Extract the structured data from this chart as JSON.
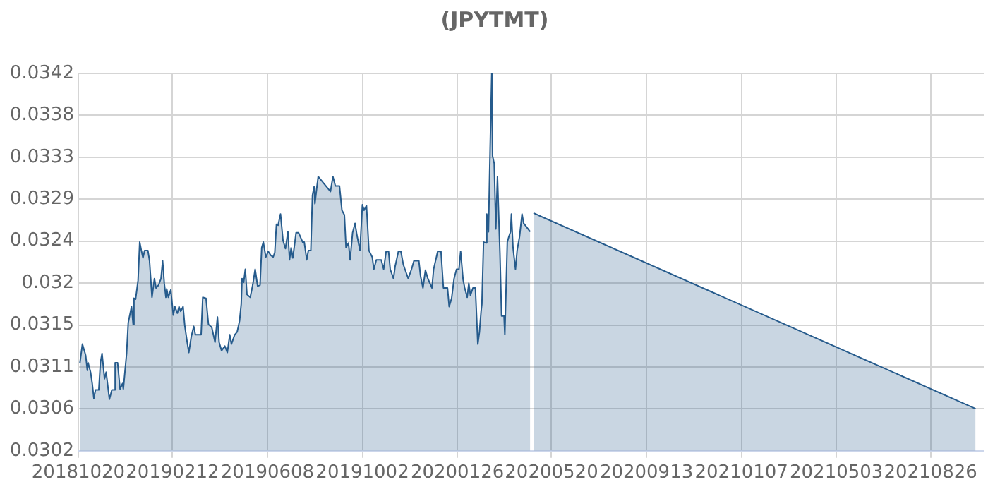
{
  "chart_data": {
    "type": "area",
    "title": "(JPYTMT)",
    "x": [
      "2018-10-22",
      "2018-10-25",
      "2018-10-29",
      "2018-10-31",
      "2018-11-01",
      "2018-11-04",
      "2018-11-06",
      "2018-11-08",
      "2018-11-10",
      "2018-11-14",
      "2018-11-16",
      "2018-11-18",
      "2018-11-21",
      "2018-11-23",
      "2018-11-27",
      "2018-11-30",
      "2018-12-03",
      "2018-12-04",
      "2018-12-07",
      "2018-12-10",
      "2018-12-13",
      "2018-12-14",
      "2018-12-18",
      "2018-12-20",
      "2018-12-24",
      "2018-12-26",
      "2018-12-27",
      "2018-12-29",
      "2019-01-01",
      "2019-01-03",
      "2019-01-05",
      "2019-01-07",
      "2019-01-09",
      "2019-01-13",
      "2019-01-15",
      "2019-01-18",
      "2019-01-21",
      "2019-01-23",
      "2019-01-26",
      "2019-01-29",
      "2019-01-31",
      "2019-02-02",
      "2019-02-04",
      "2019-02-05",
      "2019-02-07",
      "2019-02-10",
      "2019-02-13",
      "2019-02-15",
      "2019-02-18",
      "2019-02-20",
      "2019-02-22",
      "2019-02-25",
      "2019-02-27",
      "2019-03-02",
      "2019-03-04",
      "2019-03-07",
      "2019-03-10",
      "2019-03-12",
      "2019-03-19",
      "2019-03-21",
      "2019-03-25",
      "2019-03-28",
      "2019-04-01",
      "2019-04-05",
      "2019-04-08",
      "2019-04-10",
      "2019-04-13",
      "2019-04-17",
      "2019-04-20",
      "2019-04-23",
      "2019-04-25",
      "2019-04-29",
      "2019-05-02",
      "2019-05-05",
      "2019-05-07",
      "2019-05-08",
      "2019-05-10",
      "2019-05-12",
      "2019-05-14",
      "2019-05-18",
      "2019-05-21",
      "2019-05-24",
      "2019-05-27",
      "2019-05-30",
      "2019-06-01",
      "2019-06-03",
      "2019-06-06",
      "2019-06-09",
      "2019-06-12",
      "2019-06-15",
      "2019-06-17",
      "2019-06-19",
      "2019-06-21",
      "2019-06-24",
      "2019-06-27",
      "2019-06-30",
      "2019-07-03",
      "2019-07-05",
      "2019-07-07",
      "2019-07-09",
      "2019-07-13",
      "2019-07-16",
      "2019-07-19",
      "2019-07-21",
      "2019-07-23",
      "2019-07-26",
      "2019-07-28",
      "2019-07-31",
      "2019-08-02",
      "2019-08-04",
      "2019-08-05",
      "2019-08-07",
      "2019-08-09",
      "2019-08-24",
      "2019-08-27",
      "2019-08-30",
      "2019-09-04",
      "2019-09-07",
      "2019-09-10",
      "2019-09-12",
      "2019-09-15",
      "2019-09-17",
      "2019-09-20",
      "2019-09-23",
      "2019-09-25",
      "2019-09-29",
      "2019-10-02",
      "2019-10-04",
      "2019-10-07",
      "2019-10-10",
      "2019-10-14",
      "2019-10-16",
      "2019-10-19",
      "2019-10-25",
      "2019-10-28",
      "2019-10-31",
      "2019-11-03",
      "2019-11-05",
      "2019-11-09",
      "2019-11-11",
      "2019-11-15",
      "2019-11-18",
      "2019-11-21",
      "2019-11-23",
      "2019-11-27",
      "2019-12-01",
      "2019-12-04",
      "2019-12-10",
      "2019-12-12",
      "2019-12-15",
      "2019-12-18",
      "2019-12-21",
      "2019-12-26",
      "2019-12-28",
      "2020-01-02",
      "2020-01-06",
      "2020-01-09",
      "2020-01-14",
      "2020-01-16",
      "2020-01-19",
      "2020-01-22",
      "2020-01-25",
      "2020-01-28",
      "2020-01-30",
      "2020-02-02",
      "2020-02-04",
      "2020-02-07",
      "2020-02-09",
      "2020-02-11",
      "2020-02-14",
      "2020-02-17",
      "2020-02-20",
      "2020-02-22",
      "2020-02-24",
      "2020-02-25",
      "2020-02-27",
      "2020-03-01",
      "2020-03-02",
      "2020-03-04",
      "2020-03-06",
      "2020-03-08",
      "2020-03-09",
      "2020-03-11",
      "2020-03-13",
      "2020-03-15",
      "2020-03-18",
      "2020-03-20",
      "2020-03-23",
      "2020-03-24",
      "2020-03-27",
      "2020-03-29",
      "2020-03-31",
      "2020-04-01",
      "2020-04-03",
      "2020-04-06",
      "2020-04-08",
      "2020-04-11",
      "2020-04-14",
      "2020-04-16",
      "2020-04-24",
      "2020-04-26",
      "2020-04-28",
      "2021-10-20"
    ],
    "series": [
      {
        "color": "#265b8c",
        "values": [
          0.03112,
          0.03132,
          0.0312,
          0.03104,
          0.03112,
          0.03102,
          0.0309,
          0.03074,
          0.03083,
          0.03083,
          0.03112,
          0.03122,
          0.03095,
          0.03102,
          0.03073,
          0.03083,
          0.03083,
          0.03112,
          0.03112,
          0.03084,
          0.0309,
          0.03084,
          0.03122,
          0.03155,
          0.03172,
          0.03153,
          0.03181,
          0.0318,
          0.032,
          0.03241,
          0.03232,
          0.03224,
          0.03232,
          0.03232,
          0.03221,
          0.03182,
          0.03202,
          0.03192,
          0.03195,
          0.03202,
          0.03221,
          0.03197,
          0.03182,
          0.03191,
          0.03182,
          0.0319,
          0.03163,
          0.03172,
          0.03165,
          0.03172,
          0.03167,
          0.03172,
          0.03152,
          0.03134,
          0.03123,
          0.0314,
          0.03151,
          0.03142,
          0.03142,
          0.03182,
          0.03181,
          0.03153,
          0.0315,
          0.03134,
          0.03161,
          0.03134,
          0.03125,
          0.0313,
          0.03123,
          0.03142,
          0.03132,
          0.03142,
          0.03145,
          0.03157,
          0.03175,
          0.03202,
          0.03198,
          0.03212,
          0.03185,
          0.03182,
          0.03195,
          0.03212,
          0.03194,
          0.03195,
          0.03235,
          0.03241,
          0.03225,
          0.03231,
          0.03227,
          0.03225,
          0.0323,
          0.0326,
          0.03259,
          0.03271,
          0.03243,
          0.03234,
          0.03252,
          0.03222,
          0.03235,
          0.03224,
          0.03251,
          0.03251,
          0.03245,
          0.03241,
          0.03241,
          0.03222,
          0.03232,
          0.03232,
          0.03291,
          0.033,
          0.03282,
          0.03297,
          0.03311,
          0.03295,
          0.03311,
          0.03301,
          0.03301,
          0.03275,
          0.0327,
          0.03235,
          0.0324,
          0.03222,
          0.03251,
          0.03261,
          0.0325,
          0.03232,
          0.03281,
          0.03275,
          0.0328,
          0.03232,
          0.03225,
          0.03212,
          0.03222,
          0.03222,
          0.03212,
          0.03231,
          0.03231,
          0.03212,
          0.03202,
          0.03215,
          0.03231,
          0.03231,
          0.03217,
          0.03212,
          0.03202,
          0.03212,
          0.03221,
          0.03221,
          0.03205,
          0.03192,
          0.03211,
          0.03202,
          0.03192,
          0.03212,
          0.03231,
          0.03231,
          0.03192,
          0.03192,
          0.03172,
          0.03181,
          0.03202,
          0.03212,
          0.03212,
          0.03231,
          0.03201,
          0.03192,
          0.03182,
          0.03197,
          0.03184,
          0.03192,
          0.03192,
          0.03132,
          0.03145,
          0.03167,
          0.03175,
          0.03241,
          0.0324,
          0.03271,
          0.03252,
          0.0334,
          0.03421,
          0.03333,
          0.03325,
          0.03255,
          0.03311,
          0.0323,
          0.03162,
          0.03162,
          0.03142,
          0.03241,
          0.03247,
          0.03252,
          0.03271,
          0.03235,
          0.03212,
          0.03232,
          0.03247,
          0.03271,
          0.03261,
          0.03252,
          null,
          0.03272,
          0.03063
        ]
      }
    ],
    "xlim": [
      "2018-10-20",
      "2021-10-30"
    ],
    "xticks": [
      {
        "value": "2018-10-20",
        "label": "20181020"
      },
      {
        "value": "2019-02-12",
        "label": "20190212"
      },
      {
        "value": "2019-06-08",
        "label": "20190608"
      },
      {
        "value": "2019-10-02",
        "label": "20191002"
      },
      {
        "value": "2020-01-26",
        "label": "20200126"
      },
      {
        "value": "2020-05-20",
        "label": "20200520"
      },
      {
        "value": "2020-09-13",
        "label": "20200913"
      },
      {
        "value": "2021-01-07",
        "label": "20210107"
      },
      {
        "value": "2021-05-03",
        "label": "20210503"
      },
      {
        "value": "2021-08-26",
        "label": "20210826"
      }
    ],
    "ylim": [
      0.03018,
      0.034212
    ],
    "yticks": [
      {
        "value": 0.03018,
        "label": "0.0302"
      },
      {
        "value": 0.030628,
        "label": "0.0306"
      },
      {
        "value": 0.031076,
        "label": "0.0311"
      },
      {
        "value": 0.031524,
        "label": "0.0315"
      },
      {
        "value": 0.031972,
        "label": "0.032"
      },
      {
        "value": 0.03242,
        "label": "0.0324"
      },
      {
        "value": 0.032868,
        "label": "0.0329"
      },
      {
        "value": 0.033316,
        "label": "0.0333"
      },
      {
        "value": 0.033764,
        "label": "0.0338"
      },
      {
        "value": 0.034212,
        "label": "0.0342"
      }
    ],
    "grid": true,
    "legend": false,
    "marker": "none",
    "line_style": "solid"
  }
}
